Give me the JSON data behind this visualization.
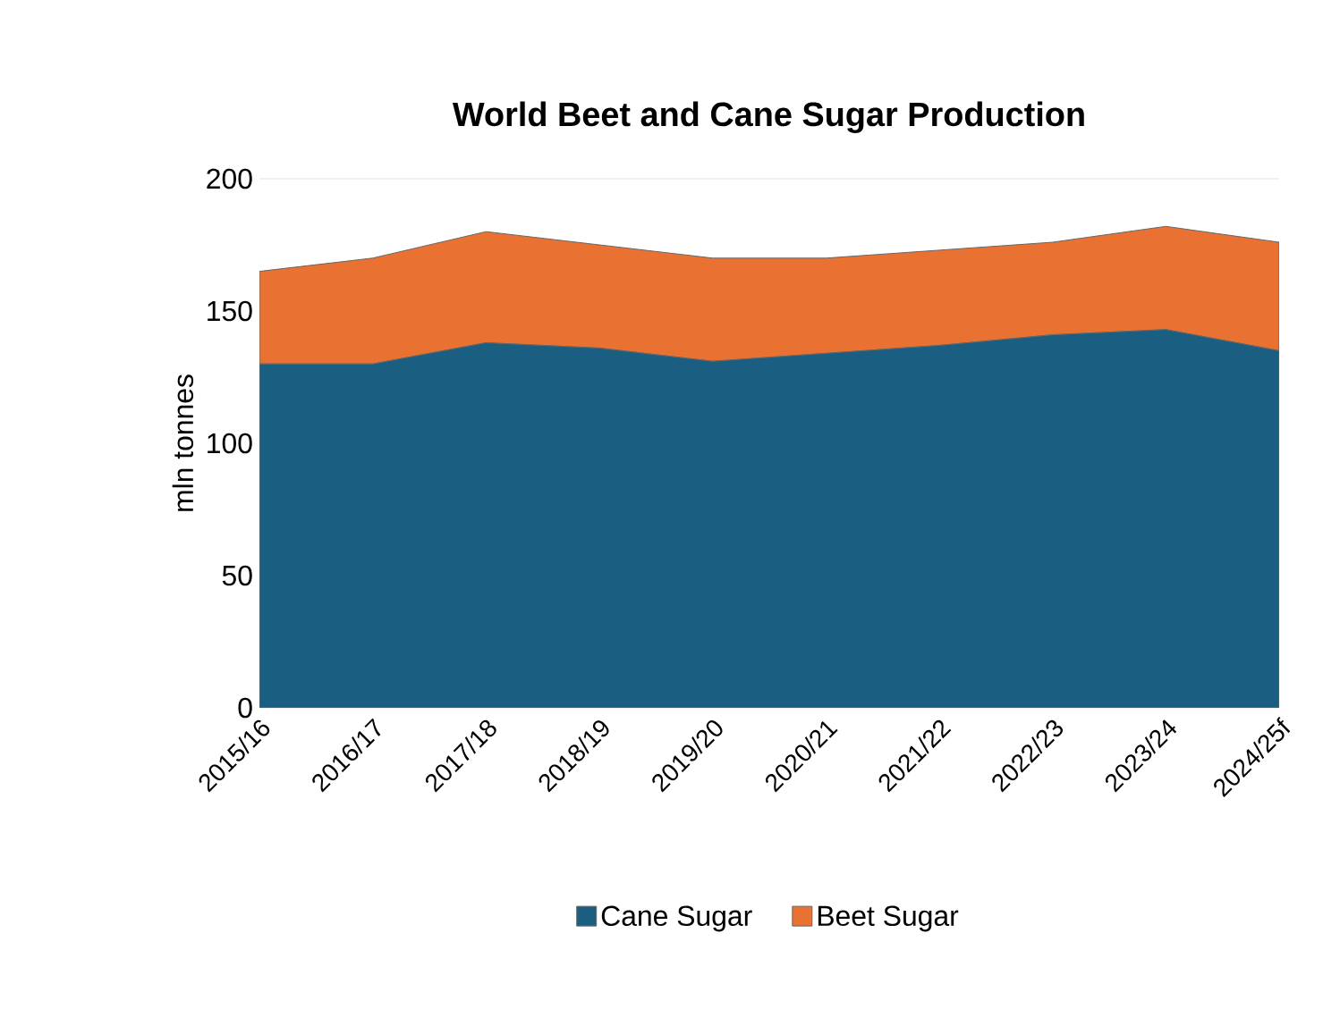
{
  "chart_data": {
    "type": "area",
    "stacked": true,
    "title": "World Beet and Cane Sugar Production",
    "ylabel": "mln tonnes",
    "categories": [
      "2015/16",
      "2016/17",
      "2017/18",
      "2018/19",
      "2019/20",
      "2020/21",
      "2021/22",
      "2022/23",
      "2023/24",
      "2024/25f"
    ],
    "series": [
      {
        "name": "Cane Sugar",
        "color": "#1a5f82",
        "values": [
          130,
          130,
          138,
          136,
          131,
          134,
          137,
          141,
          143,
          135
        ]
      },
      {
        "name": "Beet Sugar",
        "color": "#e97132",
        "values": [
          35,
          40,
          42,
          39,
          39,
          36,
          36,
          35,
          39,
          41
        ]
      }
    ],
    "ylim": [
      0,
      200
    ],
    "yticks": [
      0,
      50,
      100,
      150,
      200
    ],
    "grid": "y",
    "legend": "bottom"
  }
}
